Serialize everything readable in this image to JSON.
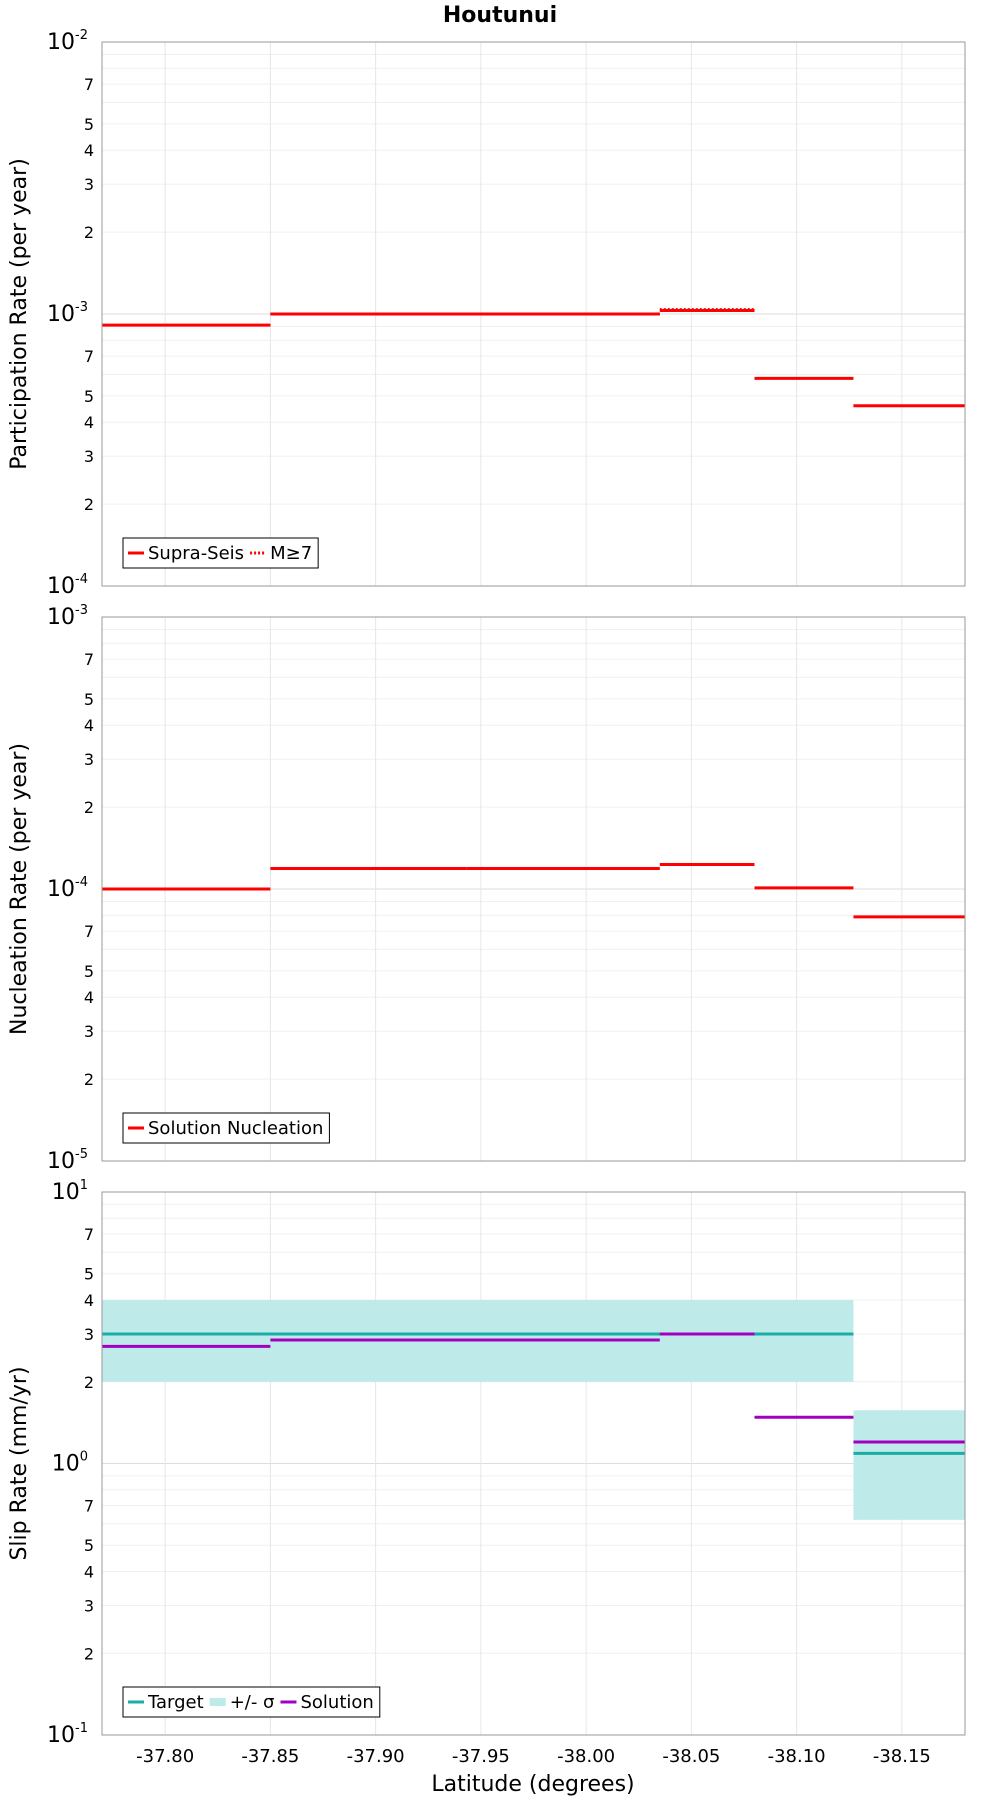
{
  "chart_data": {
    "type": "line",
    "title": "Houtunui",
    "xlabel": "Latitude (degrees)",
    "xlim": [
      -37.77,
      -38.18
    ],
    "x_ticks": [
      "-37.80",
      "-37.85",
      "-37.90",
      "-37.95",
      "-38.00",
      "-38.05",
      "-38.10",
      "-38.15"
    ],
    "x_tick_values": [
      -37.8,
      -37.85,
      -37.9,
      -37.95,
      -38.0,
      -38.05,
      -38.1,
      -38.15
    ],
    "panels": [
      {
        "ylabel": "Participation Rate (per year)",
        "yscale": "log",
        "ylim": [
          0.0001,
          0.01
        ],
        "y_minor_tick_labels": [
          "2",
          "3",
          "4",
          "5",
          "7"
        ],
        "legend": "bottom-left",
        "series": [
          {
            "name": "Supra-Seis",
            "style": "solid",
            "color": "#ff0000",
            "steps": [
              {
                "x0": -37.77,
                "x1": -37.85,
                "y": 0.00091
              },
              {
                "x0": -37.85,
                "x1": -37.943,
                "y": 0.001
              },
              {
                "x0": -37.943,
                "x1": -38.035,
                "y": 0.001
              },
              {
                "x0": -38.035,
                "x1": -38.08,
                "y": 0.00103
              },
              {
                "x0": -38.08,
                "x1": -38.127,
                "y": 0.00058
              },
              {
                "x0": -38.127,
                "x1": -38.18,
                "y": 0.00046
              }
            ]
          },
          {
            "name": "M≥7",
            "style": "dotted",
            "color": "#ff0000",
            "steps": [
              {
                "x0": -37.77,
                "x1": -37.85,
                "y": 0.00091
              },
              {
                "x0": -37.85,
                "x1": -37.943,
                "y": 0.001
              },
              {
                "x0": -37.943,
                "x1": -38.035,
                "y": 0.001
              },
              {
                "x0": -38.035,
                "x1": -38.08,
                "y": 0.00104
              },
              {
                "x0": -38.127,
                "x1": -38.18,
                "y": 0.00046
              }
            ]
          }
        ]
      },
      {
        "ylabel": "Nucleation Rate (per year)",
        "yscale": "log",
        "ylim": [
          1e-05,
          0.001
        ],
        "y_minor_tick_labels": [
          "2",
          "3",
          "4",
          "5",
          "7"
        ],
        "legend": "bottom-left",
        "series": [
          {
            "name": "Solution Nucleation",
            "style": "solid",
            "color": "#ff0000",
            "steps": [
              {
                "x0": -37.77,
                "x1": -37.85,
                "y": 0.0001
              },
              {
                "x0": -37.85,
                "x1": -37.943,
                "y": 0.000119
              },
              {
                "x0": -37.943,
                "x1": -38.035,
                "y": 0.000119
              },
              {
                "x0": -38.035,
                "x1": -38.08,
                "y": 0.000123
              },
              {
                "x0": -38.08,
                "x1": -38.127,
                "y": 0.000101
              },
              {
                "x0": -38.127,
                "x1": -38.18,
                "y": 7.9e-05
              }
            ]
          }
        ]
      },
      {
        "ylabel": "Slip Rate (mm/yr)",
        "yscale": "log",
        "ylim": [
          0.1,
          10
        ],
        "y_minor_tick_labels": [
          "2",
          "3",
          "4",
          "5",
          "7"
        ],
        "legend": "bottom-left",
        "bands": [
          {
            "name": "+/- σ",
            "color": "#bfeaea",
            "x0": -37.77,
            "x1": -38.127,
            "y0": 2,
            "y1": 4
          },
          {
            "name": "+/- σ",
            "color": "#bfeaea",
            "x0": -38.127,
            "x1": -38.18,
            "y0": 0.62,
            "y1": 1.57
          }
        ],
        "series": [
          {
            "name": "Target",
            "style": "solid",
            "color": "#1aada5",
            "steps": [
              {
                "x0": -37.77,
                "x1": -38.127,
                "y": 3.0
              },
              {
                "x0": -38.127,
                "x1": -38.18,
                "y": 1.09
              }
            ]
          },
          {
            "name": "Solution",
            "style": "solid",
            "color": "#a000c0",
            "steps": [
              {
                "x0": -37.77,
                "x1": -37.85,
                "y": 2.7
              },
              {
                "x0": -37.85,
                "x1": -38.035,
                "y": 2.85
              },
              {
                "x0": -38.035,
                "x1": -38.08,
                "y": 3.0
              },
              {
                "x0": -38.08,
                "x1": -38.127,
                "y": 1.48
              },
              {
                "x0": -38.127,
                "x1": -38.18,
                "y": 1.2
              }
            ]
          }
        ]
      }
    ]
  },
  "legends": [
    {
      "entries": [
        {
          "label": "Supra-Seis",
          "style": "solid",
          "color": "#ff0000"
        },
        {
          "label": "M≥7",
          "style": "dotted",
          "color": "#ff0000"
        }
      ]
    },
    {
      "entries": [
        {
          "label": "Solution Nucleation",
          "style": "solid",
          "color": "#ff0000"
        }
      ]
    },
    {
      "entries": [
        {
          "label": "Target",
          "style": "solid",
          "color": "#1aada5"
        },
        {
          "label": "+/- σ",
          "style": "band",
          "color": "#bfeaea"
        },
        {
          "label": "Solution",
          "style": "solid",
          "color": "#a000c0"
        }
      ]
    }
  ]
}
